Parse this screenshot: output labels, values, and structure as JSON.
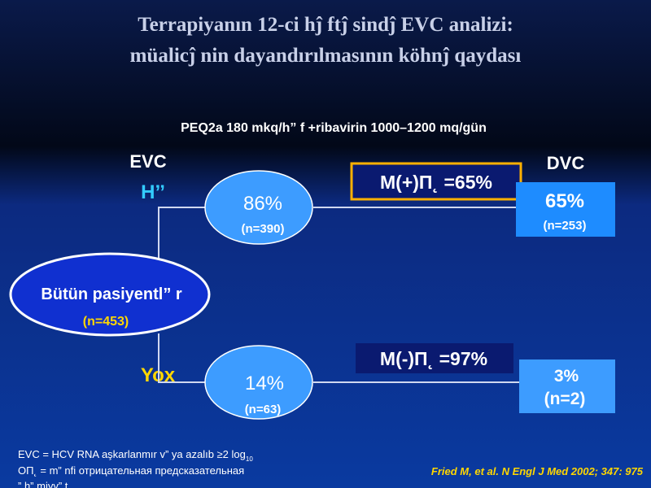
{
  "header": {
    "title_lines": [
      "Terrapiyanın 12-ci hĵ ftĵ sindĵ  EVC analizi:",
      "müalicĵ nin dayandırılmasının köhnĵ  qaydası"
    ],
    "subtitle": "PEQ2a 180 mkq/h” f +ribavirin 1000–1200 mq/gün"
  },
  "columns": {
    "evc": "EVC",
    "yes": "H’’",
    "no": "Yox",
    "dvc": "DVC"
  },
  "nodes": {
    "root": {
      "label": "Bütün pasiyentl” r",
      "n": "(n=453)"
    },
    "positive": {
      "percent": "86%",
      "n": "(n=390)"
    },
    "negative": {
      "percent": "14%",
      "n": "(n=63)"
    }
  },
  "outcomes": {
    "positive": {
      "predictive": "M(+)П˛  =65%",
      "percent": "65%",
      "n": "(n=253)"
    },
    "negative": {
      "predictive": "M(-)П˛  =97%",
      "percent": "3%",
      "n": "(n=2)"
    }
  },
  "footnote": {
    "line1": "EVC = HCV RNA aşkarlanmır v” ya azalıb ≥2 log",
    "line1_sub": "10",
    "line2": "OП˛  = m” nfi отрицательная предсказательная",
    "line3": "” h” miyy” t"
  },
  "citation": "Fried M, et al. N Engl J Med 2002; 347: 975"
}
